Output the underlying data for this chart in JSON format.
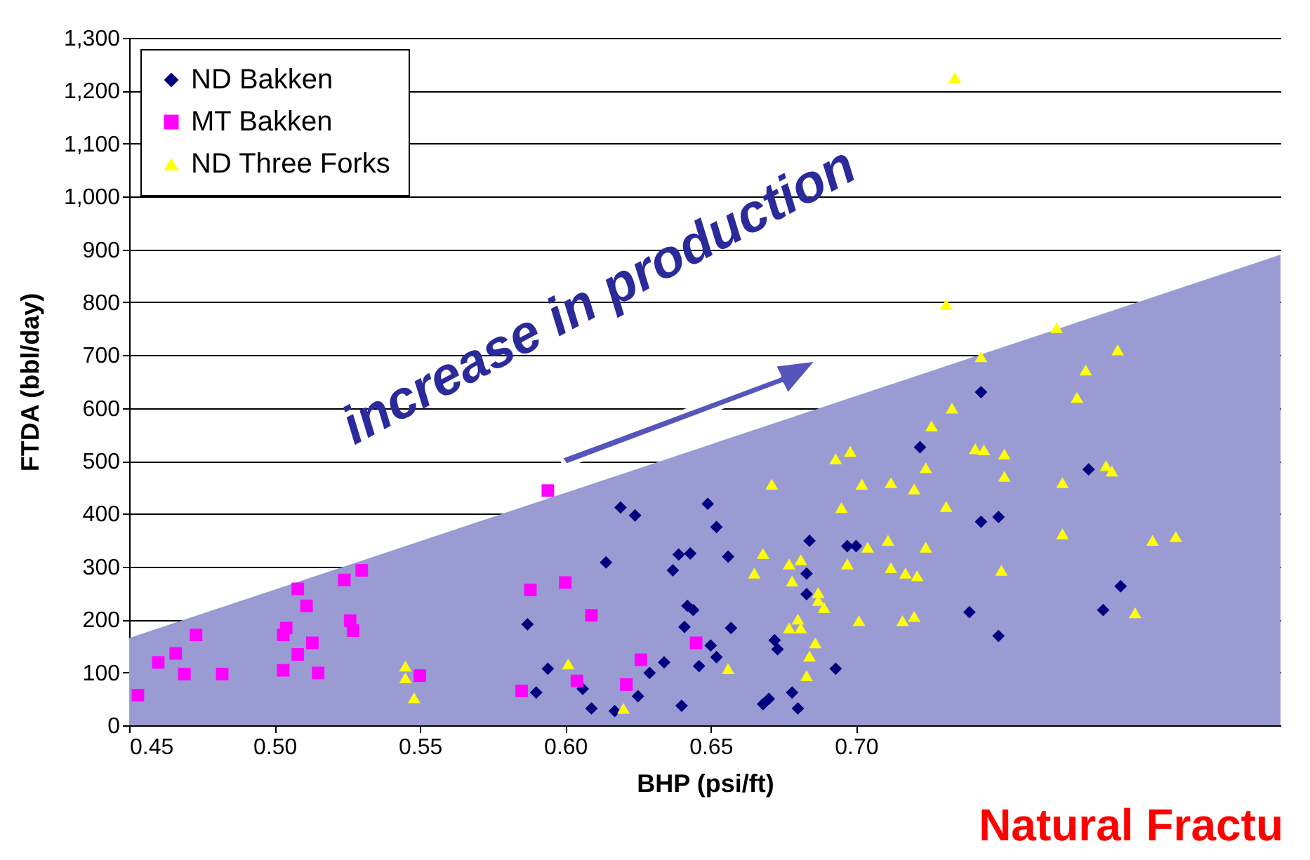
{
  "chart_data": {
    "type": "scatter",
    "xlabel": "BHP (psi/ft)",
    "ylabel": "FTDA (bbl/day)",
    "xlim": [
      0.45,
      0.846
    ],
    "xticks": [
      0.45,
      {
        "value": 0.5,
        "label": "0.50"
      },
      0.55,
      {
        "value": 0.6,
        "label": "0.60"
      },
      0.65,
      {
        "value": 0.7,
        "label": "0.70"
      }
    ],
    "ylim": [
      0,
      1300
    ],
    "yticks": [
      0,
      100,
      200,
      300,
      400,
      500,
      600,
      700,
      800,
      900,
      {
        "value": 1000,
        "label": "1,000"
      },
      {
        "value": 1100,
        "label": "1,100"
      },
      {
        "value": 1200,
        "label": "1,200"
      },
      {
        "value": 1300,
        "label": "1,300"
      }
    ],
    "grid": "y",
    "legend": "top left",
    "annotations": [
      "increase in production",
      "Natural Fractu"
    ],
    "series": [
      {
        "type": "area",
        "color": "#9b9bd3",
        "x": [
          0.45,
          0.846
        ],
        "values": [
          165,
          890
        ]
      },
      {
        "type": "scatter",
        "name": "ND Bakken",
        "color": "#000080",
        "marker": "diamond",
        "x": [
          0.619,
          0.624,
          0.649,
          0.652,
          0.639,
          0.643,
          0.614,
          0.637,
          0.642,
          0.644,
          0.587,
          0.641,
          0.65,
          0.652,
          0.646,
          0.634,
          0.629,
          0.594,
          0.59,
          0.606,
          0.609,
          0.617,
          0.625,
          0.64,
          0.684,
          0.656,
          0.697,
          0.7,
          0.683,
          0.683,
          0.657,
          0.739,
          0.672,
          0.673,
          0.722,
          0.743,
          0.693,
          0.668,
          0.67,
          0.678,
          0.68,
          0.743,
          0.749,
          0.78,
          0.791,
          0.785,
          0.749
        ],
        "values": [
          412,
          397,
          419,
          375,
          323,
          325,
          308,
          293,
          226,
          218,
          191,
          186,
          151,
          129,
          112,
          119,
          99,
          107,
          62,
          69,
          32,
          27,
          55,
          37,
          349,
          319,
          339,
          339,
          287,
          248,
          184,
          214,
          161,
          144,
          526,
          630,
          107,
          40,
          50,
          62,
          32,
          385,
          394,
          484,
          263,
          218,
          169
        ]
      },
      {
        "type": "scatter",
        "name": "MT Bakken",
        "color": "#ff00ff",
        "marker": "square",
        "x": [
          0.453,
          0.46,
          0.466,
          0.469,
          0.473,
          0.482,
          0.503,
          0.503,
          0.504,
          0.508,
          0.513,
          0.515,
          0.508,
          0.511,
          0.524,
          0.53,
          0.526,
          0.527,
          0.55,
          0.594,
          0.588,
          0.6,
          0.609,
          0.585,
          0.604,
          0.626,
          0.645,
          0.621
        ],
        "values": [
          57,
          119,
          136,
          97,
          171,
          97,
          104,
          171,
          184,
          134,
          156,
          99,
          258,
          226,
          275,
          293,
          198,
          179,
          94,
          444,
          256,
          270,
          208,
          65,
          84,
          124,
          156,
          77
        ]
      },
      {
        "type": "scatter",
        "name": "ND Three Forks",
        "color": "#ffff00",
        "marker": "triangle",
        "x": [
          0.545,
          0.545,
          0.548,
          0.601,
          0.62,
          0.733,
          0.726,
          0.741,
          0.693,
          0.698,
          0.724,
          0.671,
          0.702,
          0.712,
          0.72,
          0.695,
          0.731,
          0.711,
          0.704,
          0.724,
          0.668,
          0.677,
          0.681,
          0.697,
          0.665,
          0.712,
          0.717,
          0.721,
          0.678,
          0.687,
          0.687,
          0.689,
          0.701,
          0.716,
          0.72,
          0.68,
          0.677,
          0.681,
          0.686,
          0.684,
          0.656,
          0.683,
          0.731,
          0.769,
          0.743,
          0.79,
          0.779,
          0.776,
          0.744,
          0.751,
          0.751,
          0.771,
          0.786,
          0.788,
          0.771,
          0.802,
          0.81,
          0.75,
          0.796,
          0.734
        ],
        "values": [
          112,
          90,
          52,
          116,
          32,
          600,
          566,
          523,
          504,
          518,
          487,
          456,
          456,
          459,
          447,
          412,
          414,
          350,
          337,
          337,
          325,
          305,
          313,
          305,
          288,
          298,
          288,
          283,
          273,
          251,
          236,
          223,
          198,
          198,
          206,
          201,
          184,
          184,
          156,
          131,
          107,
          94,
          796,
          752,
          697,
          710,
          672,
          620,
          521,
          513,
          471,
          459,
          491,
          481,
          362,
          350,
          357,
          293,
          213,
          1225
        ]
      }
    ]
  }
}
